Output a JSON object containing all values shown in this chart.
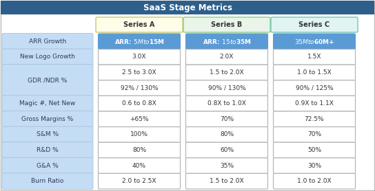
{
  "title": "SaaS Stage Metrics",
  "title_bg": "#2E5F8A",
  "title_color": "#FFFFFF",
  "series_headers": [
    "Series A",
    "Series B",
    "Series C"
  ],
  "series_header_bg": [
    "#FDFDE8",
    "#EAF5EA",
    "#E0F5F2"
  ],
  "series_header_border": [
    "#C8C870",
    "#88CC88",
    "#70C4BC"
  ],
  "row_label_bg": "#C5DDF4",
  "row_label_color": "#2A3A5A",
  "arr_row_bg": "#5B9BD5",
  "arr_row_color": "#FFFFFF",
  "data_cell_bg": "#FFFFFF",
  "data_cell_border": "#B0B0B0",
  "data_cell_color": "#333333",
  "fig_bg": "#FFFFFF",
  "outer_border": "#BBBBBB",
  "label_rows": [
    {
      "label": "ARR Growth",
      "span": 1
    },
    {
      "label": "New Logo Growth",
      "span": 1
    },
    {
      "label": "GDR /NDR %",
      "span": 2
    },
    {
      "label": "Magic #, Net New",
      "span": 1
    },
    {
      "label": "Gross Margins %",
      "span": 1
    },
    {
      "label": "S&M %",
      "span": 1
    },
    {
      "label": "R&D %",
      "span": 1
    },
    {
      "label": "G&A %",
      "span": 1
    },
    {
      "label": "Burn Ratio",
      "span": 1
    }
  ],
  "data_rows": [
    {
      "vals": [
        "ARR: $5M to $15M",
        "ARR: $15 to $35M",
        "$35M to $60M+"
      ],
      "arr": true
    },
    {
      "vals": [
        "3.0X",
        "2.0X",
        "1.5X"
      ],
      "arr": false
    },
    {
      "vals": [
        "2.5 to 3.0X",
        "1.5 to 2.0X",
        "1.0 to 1.5X"
      ],
      "arr": false
    },
    {
      "vals": [
        "92% / 130%",
        "90% / 130%",
        "90% / 125%"
      ],
      "arr": false
    },
    {
      "vals": [
        "0.6 to 0.8X",
        "0.8X to 1.0X",
        "0.9X to 1.1X"
      ],
      "arr": false
    },
    {
      "vals": [
        "+65%",
        "70%",
        "72.5%"
      ],
      "arr": false
    },
    {
      "vals": [
        "100%",
        "80%",
        "70%"
      ],
      "arr": false
    },
    {
      "vals": [
        "80%",
        "60%",
        "50%"
      ],
      "arr": false
    },
    {
      "vals": [
        "40%",
        "35%",
        "30%"
      ],
      "arr": false
    },
    {
      "vals": [
        "2.0 to 2.5X",
        "1.5 to 2.0X",
        "1.0 to 2.0X"
      ],
      "arr": false
    }
  ]
}
